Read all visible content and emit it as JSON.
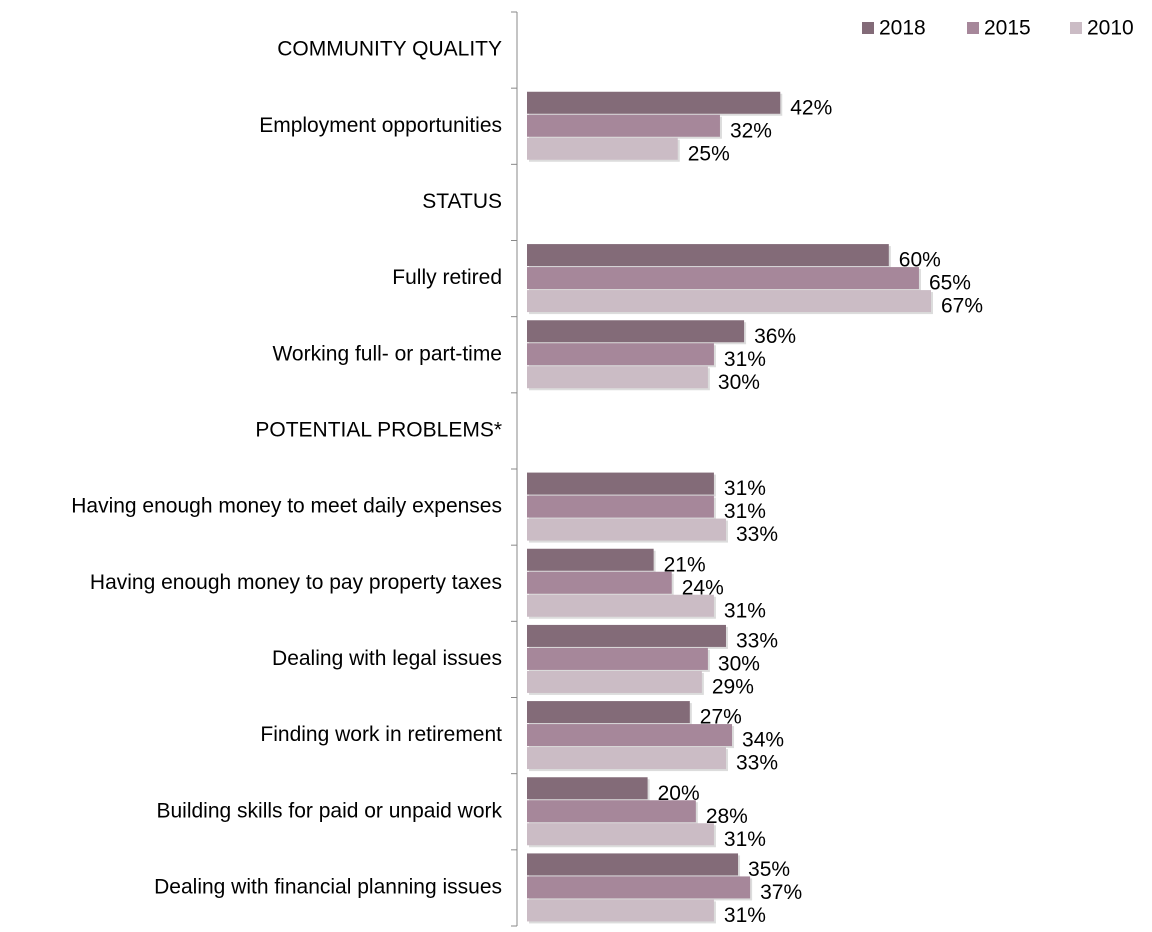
{
  "chart_data": {
    "type": "hbar",
    "categories": [
      "COMMUNITY QUALITY",
      "Employment opportunities",
      "STATUS",
      "Fully retired",
      "Working full- or part-time",
      "POTENTIAL PROBLEMS*",
      "Having enough money to meet daily expenses",
      "Having enough money to pay property taxes",
      "Dealing with legal issues",
      "Finding work in retirement",
      "Building skills for paid or unpaid work",
      "Dealing with financial planning issues"
    ],
    "series": [
      {
        "name": "2018",
        "color": "#836b78",
        "values": [
          null,
          42,
          null,
          60,
          36,
          null,
          31,
          21,
          33,
          27,
          20,
          35
        ],
        "value_labels": [
          null,
          "42%",
          null,
          "60%",
          "36%",
          null,
          "31%",
          "21%",
          "33%",
          "27%",
          "20%",
          "35%"
        ]
      },
      {
        "name": "2015",
        "color": "#a6879a",
        "values": [
          null,
          32,
          null,
          65,
          31,
          null,
          31,
          24,
          30,
          34,
          28,
          37
        ],
        "value_labels": [
          null,
          "32%",
          null,
          "65%",
          "31%",
          null,
          "31%",
          "24%",
          "30%",
          "34%",
          "28%",
          "37%"
        ]
      },
      {
        "name": "2010",
        "color": "#cbbcc5",
        "values": [
          null,
          25,
          null,
          67,
          30,
          null,
          33,
          31,
          29,
          33,
          31,
          31
        ],
        "value_labels": [
          null,
          "25%",
          null,
          "67%",
          "30%",
          null,
          "33%",
          "31%",
          "29%",
          "33%",
          "31%",
          "31%"
        ]
      }
    ],
    "xlim": [
      0,
      100
    ],
    "legend": "top-right"
  }
}
